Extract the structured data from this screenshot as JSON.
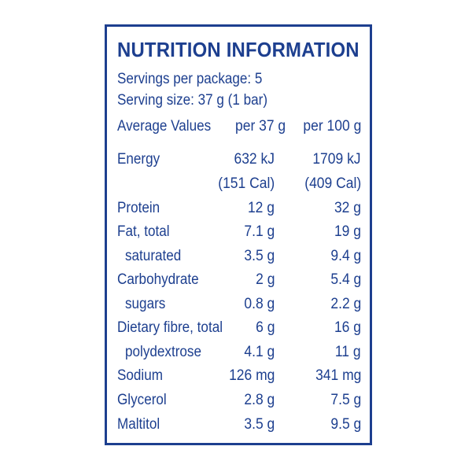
{
  "label": {
    "title": "NUTRITION INFORMATION",
    "servings_per_package": "Servings per package: 5",
    "serving_size": "Serving size: 37 g (1 bar)",
    "columns": {
      "header": "Average Values",
      "per_serving": "per 37 g",
      "per_100g": "per 100 g"
    },
    "rows": [
      {
        "name": "Energy",
        "per_serving": "632 kJ",
        "per_100g": "1709 kJ"
      },
      {
        "name": "",
        "per_serving": "(151 Cal)",
        "per_100g": "(409 Cal)"
      },
      {
        "name": "Protein",
        "per_serving": "12 g",
        "per_100g": "32 g"
      },
      {
        "name": "Fat, total",
        "per_serving": "7.1 g",
        "per_100g": "19 g"
      },
      {
        "name": "saturated",
        "per_serving": "3.5 g",
        "per_100g": "9.4 g"
      },
      {
        "name": "Carbohydrate",
        "per_serving": "2 g",
        "per_100g": "5.4 g"
      },
      {
        "name": "sugars",
        "per_serving": "0.8 g",
        "per_100g": "2.2 g"
      },
      {
        "name": "Dietary fibre, total",
        "per_serving": "6 g",
        "per_100g": "16 g"
      },
      {
        "name": "polydextrose",
        "per_serving": "4.1 g",
        "per_100g": "11 g"
      },
      {
        "name": "Sodium",
        "per_serving": "126 mg",
        "per_100g": "341 mg"
      },
      {
        "name": "Glycerol",
        "per_serving": "2.8 g",
        "per_100g": "7.5 g"
      },
      {
        "name": "Maltitol",
        "per_serving": "3.5 g",
        "per_100g": "9.5 g"
      }
    ]
  },
  "colors": {
    "text": "#1d3f8f",
    "border": "#1d3f8f",
    "background": "#ffffff"
  }
}
